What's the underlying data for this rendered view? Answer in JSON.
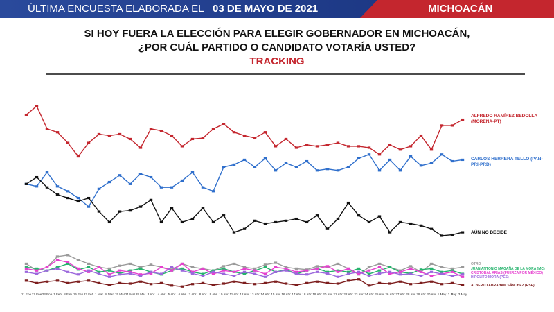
{
  "header": {
    "prefix": "ÚLTIMA ENCUESTA ELABORADA EL",
    "date": "03 DE MAYO DE 2021",
    "state": "MICHOACÁN"
  },
  "chart_data": {
    "type": "line",
    "title": "SI HOY FUERA LA ELECCIÓN PARA ELEGIR GOBERNADOR EN MICHOACÁN,",
    "title2": "¿POR CUÁL PARTIDO O CANDIDATO VOTARÍA USTED?",
    "subtitle": "TRACKING",
    "categories": [
      "11 Ene",
      "17 Ene",
      "23 Ene",
      "1 Feb",
      "8 Feb",
      "15 Feb",
      "22 Feb",
      "1 Mar",
      "8 Mar",
      "15 Mar",
      "21 Mar",
      "28 Mar",
      "3 Abr",
      "4 Abr",
      "5 Abr",
      "6 Abr",
      "7 Abr",
      "8 Abr",
      "9 Abr",
      "10 Abr",
      "11 Abr",
      "12 Abr",
      "13 Abr",
      "14 Abr",
      "15 Abr",
      "16 Abr",
      "17 Abr",
      "18 Abr",
      "19 Abr",
      "20 Abr",
      "21 Abr",
      "22 Abr",
      "23 Abr",
      "24 Abr",
      "25 Abr",
      "26 Abr",
      "27 Abr",
      "28 Abr",
      "29 Abr",
      "30 Abr",
      "1 May",
      "2 May",
      "3 May"
    ],
    "ylim": [
      2,
      43
    ],
    "series": [
      {
        "name": "ALFREDO RAMÍREZ BEDOLLA (MORENA-PT)",
        "color": "#c4262e",
        "values": [
          37.9,
          39.7,
          35,
          34.3,
          32.1,
          29.3,
          32.1,
          33.9,
          33.6,
          33.9,
          32.9,
          31.1,
          35,
          34.6,
          33.6,
          31.4,
          32.9,
          33.1,
          35,
          36,
          34.3,
          33.6,
          33.1,
          34.3,
          31.4,
          32.9,
          31.1,
          31.7,
          31.4,
          31.7,
          32.1,
          31.4,
          31.4,
          31.1,
          29.7,
          31.7,
          30.7,
          31.4,
          33.6,
          30.7,
          35.7,
          35.7,
          36.9
        ]
      },
      {
        "name": "CARLOS HERRERA TELLO (PAN-PRI-PRD)",
        "color": "#2f6fcc",
        "values": [
          23.6,
          23.1,
          26,
          23.1,
          22.1,
          20.7,
          18.9,
          22.6,
          24,
          25.4,
          23.6,
          25.7,
          25,
          22.9,
          22.9,
          24.3,
          26,
          22.9,
          22.1,
          27.1,
          27.6,
          28.6,
          27.1,
          28.9,
          26.4,
          27.9,
          27.1,
          28.3,
          26.4,
          26.7,
          26.4,
          27.1,
          28.9,
          29.7,
          26.4,
          28.6,
          26.4,
          29.3,
          27.4,
          27.9,
          29.7,
          28.3,
          28.6
        ]
      },
      {
        "name": "AÚN NO DECIDE",
        "color": "#111111",
        "values": [
          23.6,
          25,
          22.9,
          21.4,
          20.7,
          20,
          20.7,
          17.9,
          15.7,
          17.9,
          18.1,
          18.9,
          20.3,
          15.7,
          18.6,
          15.7,
          16.4,
          18.6,
          15.7,
          17.1,
          13.6,
          14.3,
          16,
          15.4,
          15.7,
          16,
          16.4,
          15.7,
          17.1,
          14.3,
          16.4,
          19.7,
          17.1,
          15.7,
          16.9,
          13.6,
          15.7,
          15.4,
          15,
          14.3,
          12.9,
          13.1,
          13.6
        ]
      },
      {
        "name": "OTRO",
        "color": "#9a9a9a",
        "values": [
          7.1,
          5.7,
          6.4,
          8.6,
          8.9,
          7.9,
          7.1,
          6.4,
          6.1,
          6.7,
          7.1,
          6.4,
          6.9,
          6.4,
          5.9,
          7.1,
          6.4,
          6.1,
          5.7,
          6.6,
          7.1,
          6.4,
          6.1,
          6.9,
          7.3,
          6.4,
          6.1,
          5.9,
          6.6,
          6.4,
          7.1,
          6.1,
          4.9,
          6.4,
          7.1,
          6.4,
          5.7,
          6.6,
          5.4,
          7.1,
          6.4,
          6.1,
          6.4
        ]
      },
      {
        "name": "JUAN ANTONIO MAGAÑA DE LA MORA (MC)",
        "color": "#25b36c",
        "values": [
          6.4,
          6.1,
          5.7,
          6.4,
          7.1,
          5.9,
          6.4,
          5.4,
          5.7,
          5.1,
          5.7,
          6.1,
          5.4,
          4.9,
          5.7,
          6.1,
          5.4,
          5.0,
          5.7,
          6.1,
          5.4,
          5.0,
          5.7,
          6.4,
          5.4,
          5.9,
          5.0,
          5.7,
          6.1,
          5.4,
          5.7,
          5.4,
          6.1,
          5.0,
          5.7,
          6.4,
          5.4,
          5.1,
          5.9,
          6.1,
          5.4,
          5.7,
          5.0
        ]
      },
      {
        "name": "CRISTOBAL ARIAS (FUERZA POR MÉXICO)",
        "color": "#e640cf",
        "values": [
          6.1,
          5.7,
          6.4,
          7.9,
          7.4,
          6.1,
          5.4,
          6.4,
          4.9,
          5.7,
          5.4,
          4.9,
          5.1,
          6.4,
          5.7,
          7.1,
          5.4,
          6.1,
          5.0,
          5.7,
          5.4,
          6.1,
          5.7,
          5.0,
          6.4,
          6.1,
          5.4,
          5.7,
          6.1,
          6.6,
          5.4,
          6.1,
          5.0,
          5.7,
          6.4,
          5.0,
          5.4,
          6.1,
          5.4,
          4.6,
          5.0,
          5.4,
          4.4
        ]
      },
      {
        "name": "HIPÓLITO MORA (PES)",
        "color": "#9b67dc",
        "values": [
          5.4,
          5.0,
          5.7,
          6.1,
          5.4,
          4.9,
          5.7,
          5.0,
          4.4,
          4.9,
          5.1,
          4.6,
          5.4,
          5.0,
          6.4,
          5.7,
          5.1,
          4.6,
          5.4,
          5.0,
          4.6,
          5.4,
          5.0,
          4.4,
          5.4,
          5.7,
          5.0,
          4.9,
          5.4,
          5.1,
          4.4,
          5.0,
          5.4,
          4.6,
          5.1,
          5.4,
          4.9,
          5.0,
          4.6,
          5.4,
          5.0,
          4.6,
          4.9
        ]
      },
      {
        "name": "ALBERTO ABRAHAM SÁNCHEZ (RSP)",
        "color": "#7c1d1d",
        "values": [
          3.6,
          3.1,
          3.4,
          3.6,
          3.1,
          3.4,
          3.6,
          3.1,
          2.7,
          3.1,
          3.0,
          3.4,
          2.9,
          3.1,
          2.6,
          2.4,
          2.9,
          3.1,
          2.7,
          3.0,
          3.4,
          3.1,
          2.9,
          3.1,
          3.4,
          3.0,
          2.7,
          3.1,
          3.4,
          3.1,
          3.0,
          3.6,
          3.9,
          2.6,
          3.1,
          3.0,
          3.4,
          2.9,
          3.1,
          3.4,
          2.9,
          3.1,
          2.7
        ]
      }
    ]
  }
}
